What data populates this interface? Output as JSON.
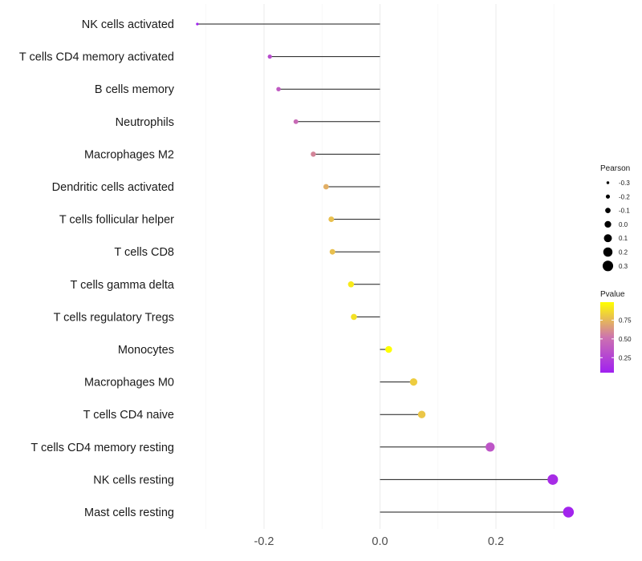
{
  "chart_data": {
    "type": "lollipop",
    "title": "",
    "xlabel": "",
    "ylabel": "",
    "xlim": [
      -0.33,
      0.345
    ],
    "x_ticks": [
      -0.2,
      0.0,
      0.2
    ],
    "x_tick_labels": [
      "-0.2",
      "0.0",
      "0.2"
    ],
    "categories": [
      "NK cells activated",
      "T cells CD4 memory activated",
      "B cells memory",
      "Neutrophils",
      "Macrophages M2",
      "Dendritic cells activated",
      "T cells follicular helper",
      "T cells CD8",
      "T cells gamma delta",
      "T cells regulatory  Tregs ",
      "Monocytes",
      "Macrophages M0",
      "T cells CD4 naive",
      "T cells CD4 memory resting",
      "NK cells resting",
      "Mast cells resting"
    ],
    "pearson": [
      -0.315,
      -0.19,
      -0.175,
      -0.145,
      -0.115,
      -0.093,
      -0.084,
      -0.082,
      -0.05,
      -0.045,
      0.015,
      0.058,
      0.072,
      0.19,
      0.298,
      0.325
    ],
    "pvalue": [
      0.05,
      0.3,
      0.38,
      0.47,
      0.58,
      0.72,
      0.78,
      0.78,
      0.92,
      0.89,
      0.99,
      0.82,
      0.8,
      0.35,
      0.12,
      0.07
    ],
    "size_legend": {
      "title": "Pearson",
      "values": [
        -0.3,
        -0.2,
        -0.1,
        0.0,
        0.1,
        0.2,
        0.3
      ],
      "labels": [
        "-0.3",
        "-0.2",
        "-0.1",
        "0.0",
        "0.1",
        "0.2",
        "0.3"
      ]
    },
    "color_legend": {
      "title": "Pvalue",
      "ticks": [
        0.25,
        0.5,
        0.75
      ],
      "tick_labels": [
        "0.25",
        "0.50",
        "0.75"
      ],
      "range": [
        0.05,
        0.99
      ],
      "low_color": "#a020f0",
      "high_color": "#ffff00"
    }
  }
}
